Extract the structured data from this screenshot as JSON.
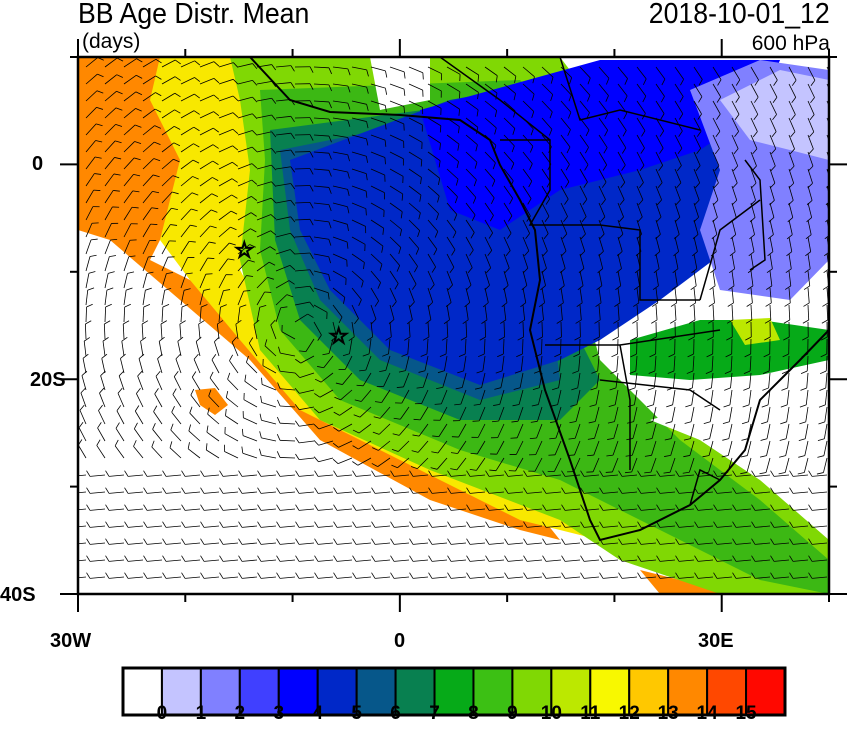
{
  "header": {
    "title": "BB Age Distr. Mean",
    "units": "(days)",
    "datetime": "2018-10-01_12",
    "level": "600 hPa"
  },
  "map": {
    "lon_range": [
      -30,
      40
    ],
    "lat_range": [
      -40,
      10
    ],
    "x_tick_labels": [
      "30W",
      "0",
      "30E"
    ],
    "y_tick_labels": [
      "0",
      "20S",
      "40S"
    ],
    "markers": [
      {
        "type": "star",
        "lon": -14.5,
        "lat": -8
      },
      {
        "type": "star",
        "lon": -5.7,
        "lat": -16
      }
    ],
    "overlay": "wind barbs",
    "boundaries": "coastlines and country borders"
  },
  "colorbar": {
    "labels": [
      "0",
      "1",
      "2",
      "3",
      "4",
      "5",
      "6",
      "7",
      "8",
      "9",
      "10",
      "11",
      "12",
      "13",
      "14",
      "15"
    ],
    "colors": [
      "#ffffff",
      "#c4c4ff",
      "#8080ff",
      "#4040ff",
      "#0000ff",
      "#0028c8",
      "#06578a",
      "#088050",
      "#06aa18",
      "#3cc014",
      "#80d804",
      "#bce800",
      "#f8f800",
      "#ffc800",
      "#ff8800",
      "#ff4800",
      "#ff0800"
    ]
  }
}
